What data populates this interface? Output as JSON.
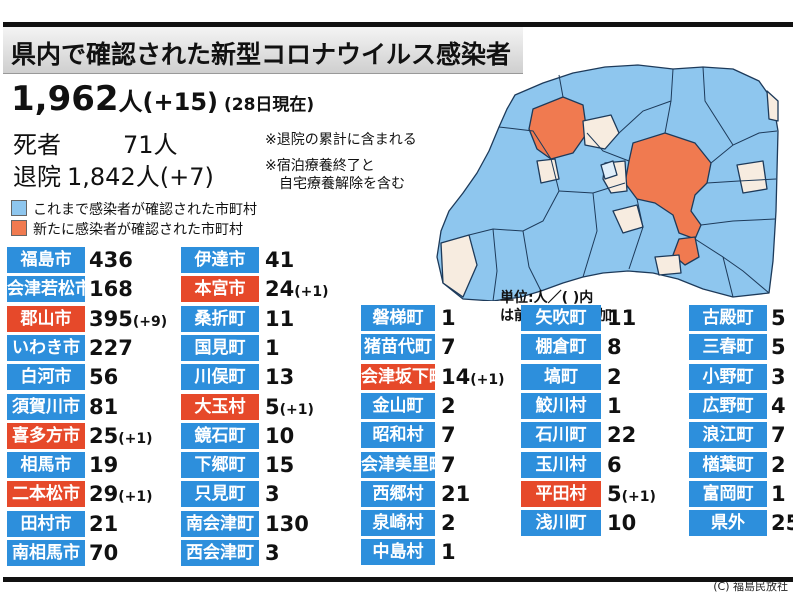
{
  "title": "県内で確認された新型コロナウイルス感染者",
  "total": {
    "count": "1,962",
    "unit": "人",
    "delta": "(+15)",
    "date_note": "(28日現在)"
  },
  "deaths": {
    "label": "死者",
    "value": "71",
    "unit": "人"
  },
  "recovered": {
    "label": "退院",
    "value": "1,842",
    "unit": "人",
    "delta": "(+7)"
  },
  "notes": [
    "※退院の累計に含まれる",
    "※宿泊療養終了と",
    "自宅療養解除を含む"
  ],
  "legend": [
    {
      "color": "#8ec6ee",
      "text": "これまで感染者が確認された市町村"
    },
    {
      "color": "#f07a50",
      "text": "新たに感染者が確認された市町村"
    }
  ],
  "unit_note": [
    "単位:人／(  )内",
    "は前日からの増加"
  ],
  "colors": {
    "blue_label": "#2d8fdc",
    "red_label": "#e6492a",
    "map_blue": "#8ec6ee",
    "map_red": "#f07a50",
    "map_none": "#f7ece0"
  },
  "columns": [
    [
      {
        "name": "福島市",
        "count": "436",
        "delta": "",
        "new": false
      },
      {
        "name": "会津若松市",
        "count": "168",
        "delta": "",
        "new": false
      },
      {
        "name": "郡山市",
        "count": "395",
        "delta": "(+9)",
        "new": true
      },
      {
        "name": "いわき市",
        "count": "227",
        "delta": "",
        "new": false
      },
      {
        "name": "白河市",
        "count": "56",
        "delta": "",
        "new": false
      },
      {
        "name": "須賀川市",
        "count": "81",
        "delta": "",
        "new": false
      },
      {
        "name": "喜多方市",
        "count": "25",
        "delta": "(+1)",
        "new": true
      },
      {
        "name": "相馬市",
        "count": "19",
        "delta": "",
        "new": false
      },
      {
        "name": "二本松市",
        "count": "29",
        "delta": "(+1)",
        "new": true
      },
      {
        "name": "田村市",
        "count": "21",
        "delta": "",
        "new": false
      },
      {
        "name": "南相馬市",
        "count": "70",
        "delta": "",
        "new": false
      }
    ],
    [
      {
        "name": "伊達市",
        "count": "41",
        "delta": "",
        "new": false
      },
      {
        "name": "本宮市",
        "count": "24",
        "delta": "(+1)",
        "new": true
      },
      {
        "name": "桑折町",
        "count": "11",
        "delta": "",
        "new": false
      },
      {
        "name": "国見町",
        "count": "1",
        "delta": "",
        "new": false
      },
      {
        "name": "川俣町",
        "count": "13",
        "delta": "",
        "new": false
      },
      {
        "name": "大玉村",
        "count": "5",
        "delta": "(+1)",
        "new": true
      },
      {
        "name": "鏡石町",
        "count": "10",
        "delta": "",
        "new": false
      },
      {
        "name": "下郷町",
        "count": "15",
        "delta": "",
        "new": false
      },
      {
        "name": "只見町",
        "count": "3",
        "delta": "",
        "new": false
      },
      {
        "name": "南会津町",
        "count": "130",
        "delta": "",
        "new": false
      },
      {
        "name": "西会津町",
        "count": "3",
        "delta": "",
        "new": false
      }
    ],
    [
      {
        "name": "磐梯町",
        "count": "1",
        "delta": "",
        "new": false
      },
      {
        "name": "猪苗代町",
        "count": "7",
        "delta": "",
        "new": false
      },
      {
        "name": "会津坂下町",
        "count": "14",
        "delta": "(+1)",
        "new": true
      },
      {
        "name": "金山町",
        "count": "2",
        "delta": "",
        "new": false
      },
      {
        "name": "昭和村",
        "count": "7",
        "delta": "",
        "new": false
      },
      {
        "name": "会津美里町",
        "count": "7",
        "delta": "",
        "new": false
      },
      {
        "name": "西郷村",
        "count": "21",
        "delta": "",
        "new": false
      },
      {
        "name": "泉崎村",
        "count": "2",
        "delta": "",
        "new": false
      },
      {
        "name": "中島村",
        "count": "1",
        "delta": "",
        "new": false
      }
    ],
    [
      {
        "name": "矢吹町",
        "count": "11",
        "delta": "",
        "new": false
      },
      {
        "name": "棚倉町",
        "count": "8",
        "delta": "",
        "new": false
      },
      {
        "name": "塙町",
        "count": "2",
        "delta": "",
        "new": false
      },
      {
        "name": "鮫川村",
        "count": "1",
        "delta": "",
        "new": false
      },
      {
        "name": "石川町",
        "count": "22",
        "delta": "",
        "new": false
      },
      {
        "name": "玉川村",
        "count": "6",
        "delta": "",
        "new": false
      },
      {
        "name": "平田村",
        "count": "5",
        "delta": "(+1)",
        "new": true
      },
      {
        "name": "浅川町",
        "count": "10",
        "delta": "",
        "new": false
      }
    ],
    [
      {
        "name": "古殿町",
        "count": "5",
        "delta": "",
        "new": false
      },
      {
        "name": "三春町",
        "count": "5",
        "delta": "",
        "new": false
      },
      {
        "name": "小野町",
        "count": "3",
        "delta": "",
        "new": false
      },
      {
        "name": "広野町",
        "count": "4",
        "delta": "",
        "new": false
      },
      {
        "name": "浪江町",
        "count": "7",
        "delta": "",
        "new": false
      },
      {
        "name": "楢葉町",
        "count": "2",
        "delta": "",
        "new": false
      },
      {
        "name": "富岡町",
        "count": "1",
        "delta": "",
        "new": false
      },
      {
        "name": "県外",
        "count": "25",
        "delta": "",
        "new": false
      }
    ]
  ],
  "credit": "(C) 福島民放社"
}
